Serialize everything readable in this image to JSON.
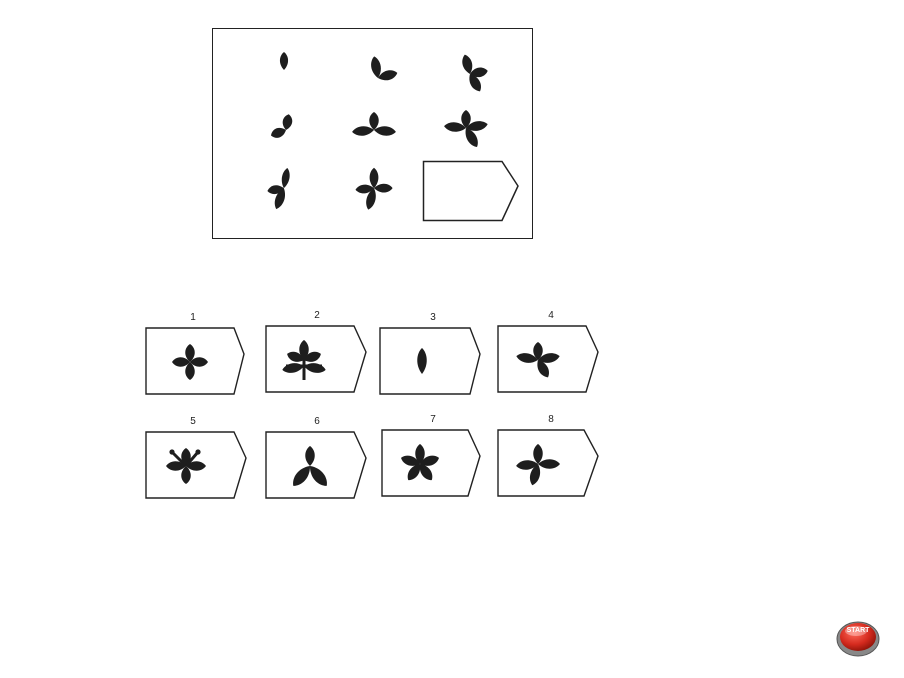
{
  "puzzle": {
    "rows": [
      [
        [
          0
        ],
        [
          0,
          1
        ],
        [
          0,
          1,
          2
        ]
      ],
      [
        [
          3
        ],
        [
          3,
          4
        ],
        [
          3,
          4,
          5
        ]
      ],
      [
        [
          6
        ],
        [
          6,
          7
        ],
        null
      ]
    ]
  },
  "options": [
    {
      "number": "1",
      "leaves": [
        0,
        1,
        2,
        3
      ]
    },
    {
      "number": "2",
      "leaves": [
        0,
        1,
        2,
        3,
        4
      ]
    },
    {
      "number": "3",
      "leaves": [
        0
      ]
    },
    {
      "number": "4",
      "leaves": [
        0,
        1,
        2,
        3
      ]
    },
    {
      "number": "5",
      "leaves": [
        0,
        1,
        2,
        3
      ]
    },
    {
      "number": "6",
      "leaves": [
        0,
        1,
        2
      ]
    },
    {
      "number": "7",
      "leaves": [
        0,
        1,
        2,
        3,
        4
      ]
    },
    {
      "number": "8",
      "leaves": [
        0,
        1,
        2,
        3
      ]
    }
  ],
  "start_button": {
    "label": "START",
    "color": "#d42a1e"
  },
  "colors": {
    "shape": "#1e1e1e",
    "frame": "#222222"
  }
}
